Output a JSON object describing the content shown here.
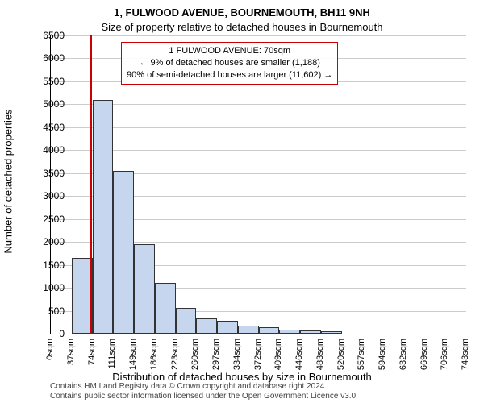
{
  "titles": {
    "line1": "1, FULWOOD AVENUE, BOURNEMOUTH, BH11 9NH",
    "line2": "Size of property relative to detached houses in Bournemouth"
  },
  "ylabel": "Number of detached properties",
  "xlabel": "Distribution of detached houses by size in Bournemouth",
  "chart": {
    "type": "histogram",
    "ylim": [
      0,
      6500
    ],
    "ytick_step": 500,
    "background_color": "#ffffff",
    "grid_color": "#cccccc",
    "bar_fill": "#c6d6ef",
    "bar_border": "#333333",
    "xticks": [
      "0sqm",
      "37sqm",
      "74sqm",
      "111sqm",
      "149sqm",
      "186sqm",
      "223sqm",
      "260sqm",
      "297sqm",
      "334sqm",
      "372sqm",
      "409sqm",
      "446sqm",
      "483sqm",
      "520sqm",
      "557sqm",
      "594sqm",
      "632sqm",
      "669sqm",
      "706sqm",
      "743sqm"
    ],
    "values": [
      0,
      1650,
      5100,
      3550,
      1950,
      1100,
      570,
      330,
      280,
      170,
      140,
      90,
      70,
      45,
      0,
      0,
      0,
      0,
      0,
      0
    ],
    "marker_value_sqm": 70,
    "marker_color": "#cc0000"
  },
  "annotation": {
    "line1": "1 FULWOOD AVENUE: 70sqm",
    "line2": "← 9% of detached houses are smaller (1,188)",
    "line3": "90% of semi-detached houses are larger (11,602) →",
    "border_color": "#cc0000"
  },
  "footer": {
    "line1": "Contains HM Land Registry data © Crown copyright and database right 2024.",
    "line2": "Contains public sector information licensed under the Open Government Licence v3.0."
  }
}
